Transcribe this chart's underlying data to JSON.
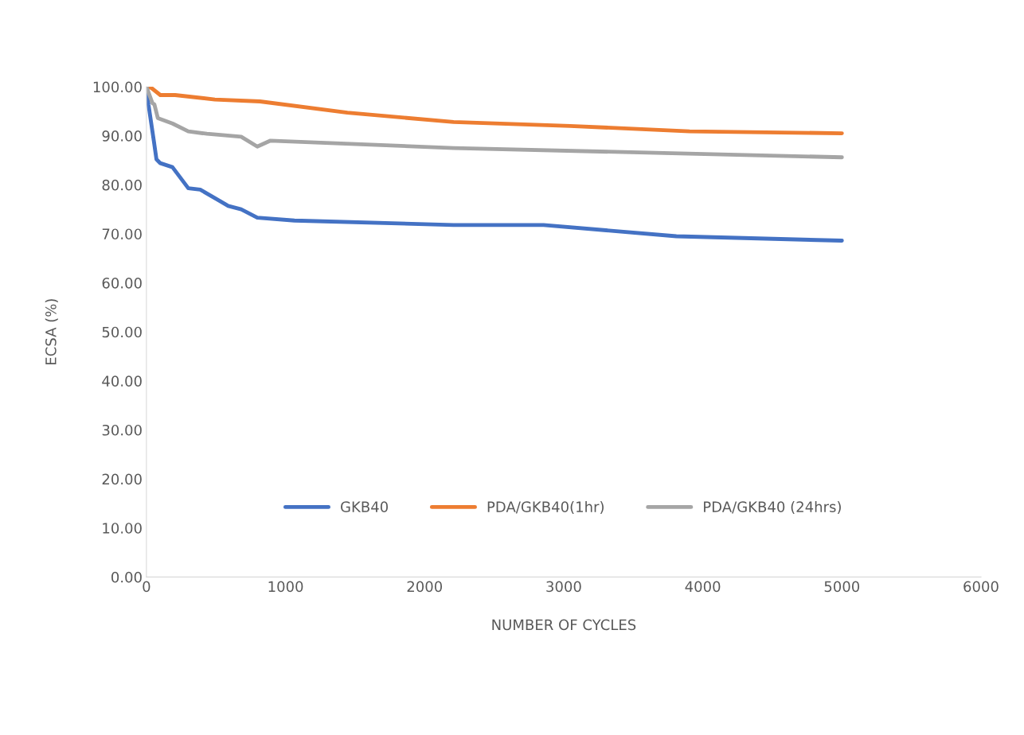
{
  "chart_data": {
    "type": "line",
    "xlabel": "NUMBER OF CYCLES",
    "ylabel": "ECSA (%)",
    "xlim": [
      0,
      6000
    ],
    "xticks": [
      0,
      1000,
      2000,
      3000,
      4000,
      5000,
      6000
    ],
    "ylim": [
      0,
      100
    ],
    "yticks": [
      {
        "value": 0,
        "label": "0.00"
      },
      {
        "value": 10,
        "label": "10.00"
      },
      {
        "value": 20,
        "label": "20.00"
      },
      {
        "value": 30,
        "label": "30.00"
      },
      {
        "value": 40,
        "label": "40.00"
      },
      {
        "value": 50,
        "label": "50.00"
      },
      {
        "value": 60,
        "label": "60.00"
      },
      {
        "value": 70,
        "label": "70.00"
      },
      {
        "value": 80,
        "label": "80.00"
      },
      {
        "value": 90,
        "label": "90.00"
      },
      {
        "value": 100,
        "label": "100.00"
      }
    ],
    "grid": false,
    "legend": "bottom",
    "marker": "none",
    "line_style": "solid",
    "series": [
      {
        "name": "GKB40",
        "color": "#4472c4",
        "x": [
          0,
          15,
          53,
          72,
          100,
          187,
          301,
          387,
          588,
          681,
          797,
          1064,
          2208,
          2855,
          3810,
          5000
        ],
        "values": [
          100,
          96.3,
          89,
          85.2,
          84.4,
          83.6,
          79.3,
          79,
          75.7,
          75,
          73.3,
          72.7,
          71.8,
          71.8,
          69.5,
          68.6
        ]
      },
      {
        "name": "PDA/GKB40(1hr)",
        "color": "#ed7d31",
        "x": [
          0,
          34,
          100,
          206,
          492,
          816,
          1445,
          2208,
          3046,
          3905,
          5000
        ],
        "values": [
          100,
          99.8,
          98.3,
          98.3,
          97.4,
          97,
          94.7,
          92.8,
          92,
          90.9,
          90.5
        ]
      },
      {
        "name": "PDA/GKB40 (24hrs)",
        "color": "#a5a5a5",
        "x": [
          0,
          44,
          57,
          82,
          187,
          301,
          435,
          681,
          797,
          892,
          2208,
          5000
        ],
        "values": [
          100,
          96.6,
          96.4,
          93.6,
          92.5,
          90.9,
          90.4,
          89.8,
          87.8,
          89,
          87.5,
          85.6
        ]
      }
    ]
  }
}
